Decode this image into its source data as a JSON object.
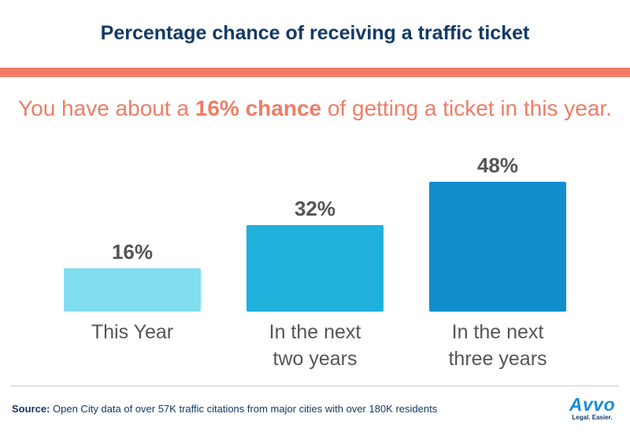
{
  "title": "Percentage chance of receiving a traffic ticket",
  "subtitle": {
    "pre": "You have about a ",
    "highlight": "16% chance",
    "post": " of getting a ticket in this year."
  },
  "colors": {
    "title": "#123a66",
    "accent": "#ef7d65",
    "value_label": "#555555",
    "category_label": "#555555"
  },
  "chart_data": {
    "type": "bar",
    "categories": [
      [
        "This Year"
      ],
      [
        "In the next",
        "two years"
      ],
      [
        "In the next",
        "three years"
      ]
    ],
    "values": [
      16,
      32,
      48
    ],
    "value_labels": [
      "16%",
      "32%",
      "48%"
    ],
    "bar_colors": [
      "#80def0",
      "#1fb0dc",
      "#128ecd"
    ],
    "ylim": [
      0,
      48
    ],
    "grid": false,
    "legend": "none"
  },
  "source": {
    "label": "Source:",
    "text": " Open City data of over 57K traffic citations from major cities with over 180K residents"
  },
  "logo": {
    "word": "Avvo",
    "tagline": "Legal. Easier."
  }
}
